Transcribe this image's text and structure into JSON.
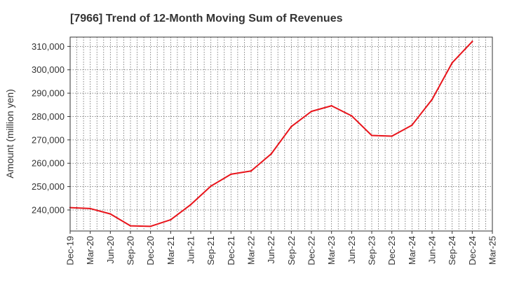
{
  "chart_data": {
    "type": "line",
    "title": "[7966]  Trend of 12-Month Moving Sum of Revenues",
    "xlabel": "",
    "ylabel": "Amount (million yen)",
    "ylim": [
      231000,
      314000
    ],
    "yticks": [
      240000,
      250000,
      260000,
      270000,
      280000,
      290000,
      300000,
      310000
    ],
    "ytick_labels": [
      "240,000",
      "250,000",
      "260,000",
      "270,000",
      "280,000",
      "290,000",
      "300,000",
      "310,000"
    ],
    "categories": [
      "Dec-19",
      "Mar-20",
      "Jun-20",
      "Sep-20",
      "Dec-20",
      "Mar-21",
      "Jun-21",
      "Sep-21",
      "Dec-21",
      "Mar-22",
      "Jun-22",
      "Sep-22",
      "Dec-22",
      "Mar-23",
      "Jun-23",
      "Sep-23",
      "Dec-23",
      "Mar-24",
      "Jun-24",
      "Sep-24",
      "Dec-24",
      "Mar-25"
    ],
    "series": [
      {
        "values": [
          241000,
          240600,
          238300,
          233200,
          233000,
          235800,
          242300,
          250200,
          255300,
          256700,
          264000,
          275700,
          282200,
          284600,
          280300,
          271900,
          271600,
          276300,
          287300,
          303000,
          312100,
          null
        ],
        "color": "#e8141b"
      }
    ],
    "grid": true,
    "legend": "none"
  }
}
